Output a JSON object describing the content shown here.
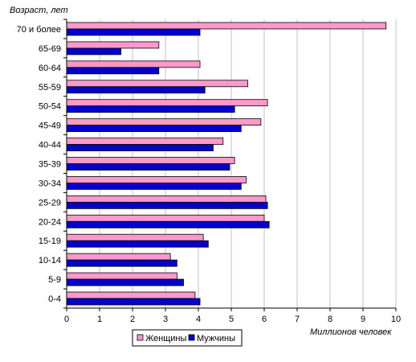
{
  "chart_data": {
    "type": "bar",
    "orientation": "horizontal",
    "categories": [
      "70 и более",
      "65-69",
      "60-64",
      "55-59",
      "50-54",
      "45-49",
      "40-44",
      "35-39",
      "30-34",
      "25-29",
      "20-24",
      "15-19",
      "10-14",
      "5-9",
      "0-4"
    ],
    "series": [
      {
        "name": "Женщины",
        "color": "#ff99cc",
        "values": [
          9.7,
          2.8,
          4.05,
          5.5,
          6.1,
          5.9,
          4.75,
          5.1,
          5.45,
          6.05,
          6.0,
          4.15,
          3.15,
          3.35,
          3.9
        ]
      },
      {
        "name": "Мужчины",
        "color": "#0000cc",
        "values": [
          4.05,
          1.65,
          2.8,
          4.2,
          5.1,
          5.3,
          4.45,
          4.95,
          5.3,
          6.1,
          6.15,
          4.3,
          3.35,
          3.55,
          4.05
        ]
      }
    ],
    "xlabel": "Миллионов человек",
    "ylabel": "Возраст, лет",
    "xlim": [
      0,
      10
    ],
    "xticks": [
      "0",
      "1",
      "2",
      "3",
      "4",
      "5",
      "6",
      "7",
      "8",
      "9",
      "10"
    ],
    "grid": true,
    "legend_position": "bottom"
  }
}
